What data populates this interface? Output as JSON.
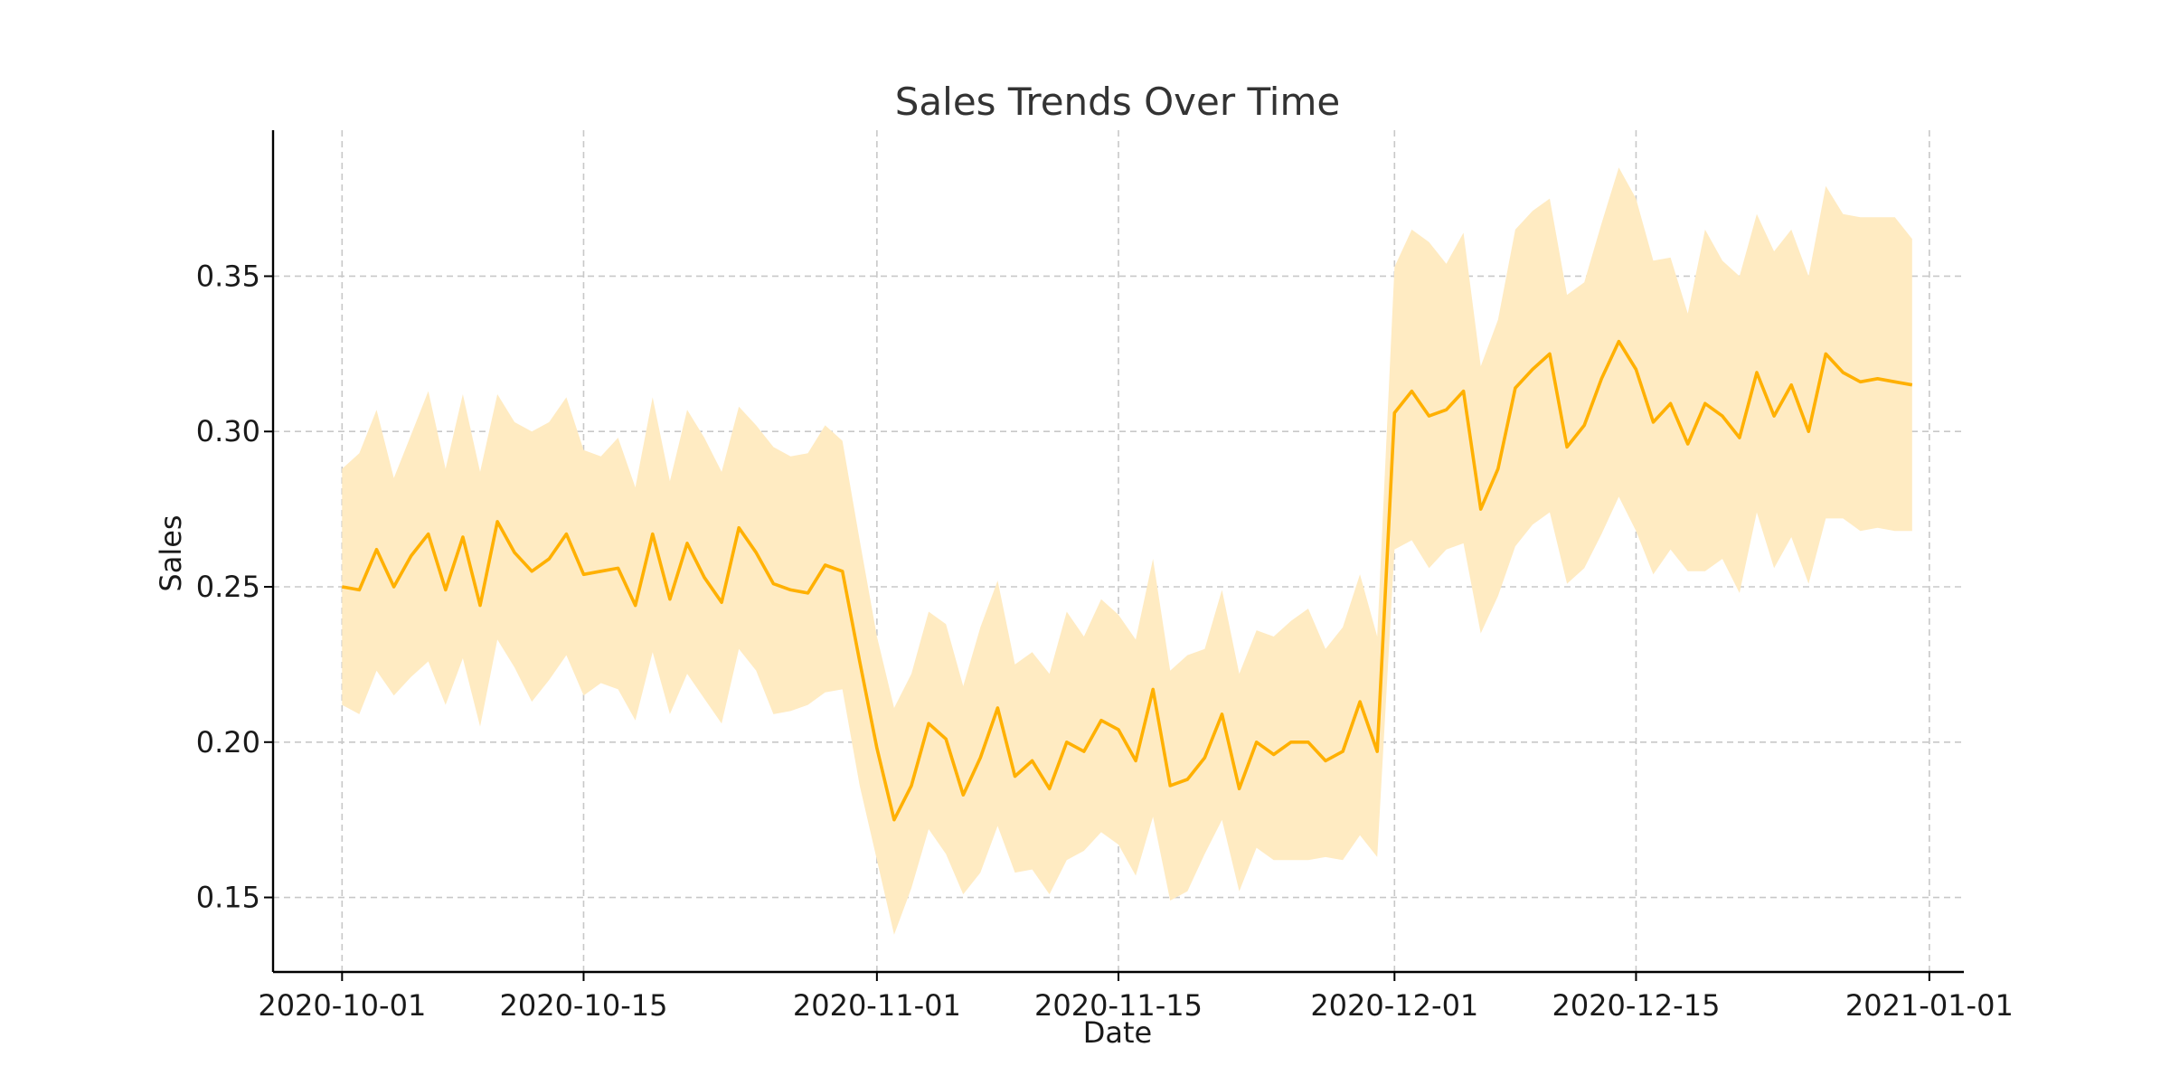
{
  "chart_data": {
    "type": "line",
    "title": "Sales Trends Over Time",
    "xlabel": "Date",
    "ylabel": "Sales",
    "xlim": [
      "2020-09-27",
      "2021-01-03"
    ],
    "ylim": [
      0.126,
      0.397
    ],
    "grid": true,
    "legend": "none",
    "x_ticks": [
      "2020-10-01",
      "2020-10-15",
      "2020-11-01",
      "2020-11-15",
      "2020-12-01",
      "2020-12-15",
      "2021-01-01"
    ],
    "y_ticks": [
      0.15,
      0.2,
      0.25,
      0.3,
      0.35
    ],
    "y_tick_labels": [
      "0.15",
      "0.20",
      "0.25",
      "0.30",
      "0.35"
    ],
    "colors": {
      "line": "#ffb000",
      "band": "#ffebc2"
    },
    "x": [
      "2020-10-01",
      "2020-10-02",
      "2020-10-03",
      "2020-10-04",
      "2020-10-05",
      "2020-10-06",
      "2020-10-07",
      "2020-10-08",
      "2020-10-09",
      "2020-10-10",
      "2020-10-11",
      "2020-10-12",
      "2020-10-13",
      "2020-10-14",
      "2020-10-15",
      "2020-10-16",
      "2020-10-17",
      "2020-10-18",
      "2020-10-19",
      "2020-10-20",
      "2020-10-21",
      "2020-10-22",
      "2020-10-23",
      "2020-10-24",
      "2020-10-25",
      "2020-10-26",
      "2020-10-27",
      "2020-10-28",
      "2020-10-29",
      "2020-10-30",
      "2020-10-31",
      "2020-11-01",
      "2020-11-02",
      "2020-11-03",
      "2020-11-04",
      "2020-11-05",
      "2020-11-06",
      "2020-11-07",
      "2020-11-08",
      "2020-11-09",
      "2020-11-10",
      "2020-11-11",
      "2020-11-12",
      "2020-11-13",
      "2020-11-14",
      "2020-11-15",
      "2020-11-16",
      "2020-11-17",
      "2020-11-18",
      "2020-11-19",
      "2020-11-20",
      "2020-11-21",
      "2020-11-22",
      "2020-11-23",
      "2020-11-24",
      "2020-11-25",
      "2020-11-26",
      "2020-11-27",
      "2020-11-28",
      "2020-11-29",
      "2020-11-30",
      "2020-12-01",
      "2020-12-02",
      "2020-12-03",
      "2020-12-04",
      "2020-12-05",
      "2020-12-06",
      "2020-12-07",
      "2020-12-08",
      "2020-12-09",
      "2020-12-10",
      "2020-12-11",
      "2020-12-12",
      "2020-12-13",
      "2020-12-14",
      "2020-12-15",
      "2020-12-16",
      "2020-12-17",
      "2020-12-18",
      "2020-12-19",
      "2020-12-20",
      "2020-12-21",
      "2020-12-22",
      "2020-12-23",
      "2020-12-24",
      "2020-12-25",
      "2020-12-26",
      "2020-12-27",
      "2020-12-28",
      "2020-12-29",
      "2020-12-30",
      "2020-12-31"
    ],
    "series": [
      {
        "values": [
          0.25,
          0.249,
          0.262,
          0.25,
          0.26,
          0.267,
          0.249,
          0.266,
          0.244,
          0.271,
          0.261,
          0.255,
          0.259,
          0.267,
          0.254,
          0.255,
          0.256,
          0.244,
          0.267,
          0.246,
          0.264,
          0.253,
          0.245,
          0.269,
          0.261,
          0.251,
          0.249,
          0.248,
          0.257,
          0.255,
          0.226,
          0.198,
          0.175,
          0.186,
          0.206,
          0.201,
          0.183,
          0.195,
          0.211,
          0.189,
          0.194,
          0.185,
          0.2,
          0.197,
          0.207,
          0.204,
          0.194,
          0.217,
          0.186,
          0.188,
          0.195,
          0.209,
          0.185,
          0.2,
          0.196,
          0.2,
          0.2,
          0.194,
          0.197,
          0.213,
          0.197,
          0.306,
          0.313,
          0.305,
          0.307,
          0.313,
          0.275,
          0.288,
          0.314,
          0.32,
          0.325,
          0.295,
          0.302,
          0.317,
          0.329,
          0.32,
          0.303,
          0.309,
          0.296,
          0.309,
          0.305,
          0.298,
          0.319,
          0.305,
          0.315,
          0.3,
          0.325,
          0.319,
          0.316,
          0.317,
          0.316,
          0.315
        ],
        "lower": [
          0.212,
          0.209,
          0.223,
          0.215,
          0.221,
          0.226,
          0.212,
          0.227,
          0.205,
          0.233,
          0.224,
          0.213,
          0.22,
          0.228,
          0.215,
          0.219,
          0.217,
          0.207,
          0.229,
          0.209,
          0.222,
          0.214,
          0.206,
          0.23,
          0.223,
          0.209,
          0.21,
          0.212,
          0.216,
          0.217,
          0.186,
          0.162,
          0.138,
          0.153,
          0.172,
          0.164,
          0.151,
          0.158,
          0.173,
          0.158,
          0.159,
          0.151,
          0.162,
          0.165,
          0.171,
          0.167,
          0.157,
          0.176,
          0.149,
          0.152,
          0.164,
          0.175,
          0.152,
          0.166,
          0.162,
          0.162,
          0.162,
          0.163,
          0.162,
          0.17,
          0.163,
          0.262,
          0.265,
          0.256,
          0.262,
          0.264,
          0.235,
          0.247,
          0.263,
          0.27,
          0.274,
          0.251,
          0.256,
          0.267,
          0.279,
          0.268,
          0.254,
          0.262,
          0.255,
          0.255,
          0.259,
          0.248,
          0.274,
          0.256,
          0.266,
          0.251,
          0.272,
          0.272,
          0.268,
          0.269,
          0.268,
          0.268
        ],
        "upper": [
          0.288,
          0.293,
          0.307,
          0.285,
          0.299,
          0.313,
          0.288,
          0.312,
          0.287,
          0.312,
          0.303,
          0.3,
          0.303,
          0.311,
          0.294,
          0.292,
          0.298,
          0.282,
          0.311,
          0.284,
          0.307,
          0.298,
          0.287,
          0.308,
          0.302,
          0.295,
          0.292,
          0.293,
          0.302,
          0.297,
          0.265,
          0.234,
          0.211,
          0.222,
          0.242,
          0.238,
          0.218,
          0.237,
          0.252,
          0.225,
          0.229,
          0.222,
          0.242,
          0.234,
          0.246,
          0.241,
          0.233,
          0.259,
          0.223,
          0.228,
          0.23,
          0.249,
          0.222,
          0.236,
          0.234,
          0.239,
          0.243,
          0.23,
          0.237,
          0.254,
          0.234,
          0.353,
          0.365,
          0.361,
          0.354,
          0.364,
          0.321,
          0.336,
          0.365,
          0.371,
          0.375,
          0.344,
          0.348,
          0.367,
          0.385,
          0.375,
          0.355,
          0.356,
          0.338,
          0.365,
          0.355,
          0.35,
          0.37,
          0.358,
          0.365,
          0.35,
          0.379,
          0.37,
          0.369,
          0.369,
          0.369,
          0.362
        ]
      }
    ]
  }
}
